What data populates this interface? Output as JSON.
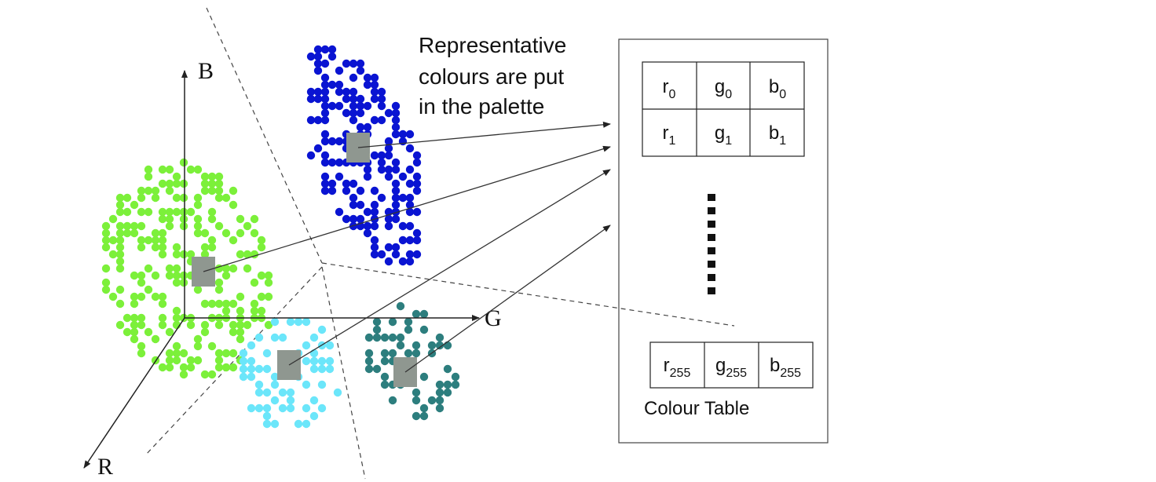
{
  "axes": {
    "b_label": "B",
    "g_label": "G",
    "r_label": "R"
  },
  "annotation": {
    "line1": "Representative",
    "line2": "colours are put",
    "line3": "in the palette"
  },
  "table": {
    "caption": "Colour Table",
    "rows": [
      [
        {
          "base": "r",
          "sub": "0"
        },
        {
          "base": "g",
          "sub": "0"
        },
        {
          "base": "b",
          "sub": "0"
        }
      ],
      [
        {
          "base": "r",
          "sub": "1"
        },
        {
          "base": "g",
          "sub": "1"
        },
        {
          "base": "b",
          "sub": "1"
        }
      ]
    ],
    "last_row": [
      {
        "base": "r",
        "sub": "255"
      },
      {
        "base": "g",
        "sub": "255"
      },
      {
        "base": "b",
        "sub": "255"
      }
    ]
  },
  "colors": {
    "green_cluster": "#7CF03A",
    "cyan_cluster": "#6BE6FA",
    "blue_cluster": "#0A14D2",
    "teal_cluster": "#2D7E7E",
    "representative": "#8F9790",
    "line": "#333333"
  }
}
